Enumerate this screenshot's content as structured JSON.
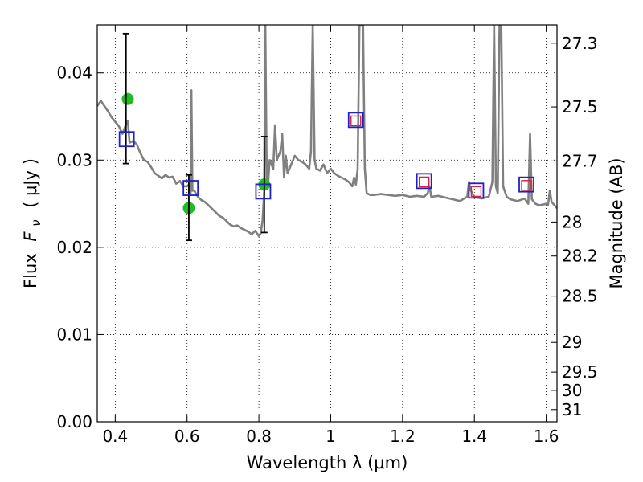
{
  "chart_data": {
    "type": "scatter",
    "title": "",
    "xlabel": "Wavelength  λ (μm)",
    "ylabel_left": "Flux  F_ν  ( μJy )",
    "ylabel_left_parts": {
      "prefix": "Flux",
      "symbol_base": "F",
      "symbol_sub": "ν",
      "unit": "( μJy )"
    },
    "ylabel_right": "Magnitude (AB)",
    "xlim": [
      0.35,
      1.63
    ],
    "ylim": [
      0.0,
      0.0455
    ],
    "x_ticks": [
      0.4,
      0.6,
      0.8,
      1.0,
      1.2,
      1.4,
      1.6
    ],
    "x_tick_labels": [
      "0.4",
      "0.6",
      "0.8",
      "1",
      "1.2",
      "1.4",
      "1.6"
    ],
    "y_ticks": [
      0.0,
      0.01,
      0.02,
      0.03,
      0.04
    ],
    "y_tick_labels": [
      "0.00",
      "0.01",
      "0.02",
      "0.03",
      "0.04"
    ],
    "right_ticks": [
      {
        "flux": 0.0434,
        "label": "27.3"
      },
      {
        "flux": 0.0361,
        "label": "27.5"
      },
      {
        "flux": 0.0299,
        "label": "27.7"
      },
      {
        "flux": 0.0229,
        "label": "28"
      },
      {
        "flux": 0.019,
        "label": "28.2"
      },
      {
        "flux": 0.0144,
        "label": "28.5"
      },
      {
        "flux": 0.0091,
        "label": "29"
      },
      {
        "flux": 0.0057,
        "label": "29.5"
      },
      {
        "flux": 0.0036,
        "label": "30"
      },
      {
        "flux": 0.0014,
        "label": "31"
      }
    ],
    "grid": true,
    "colors": {
      "model_line": "#808080",
      "green_points": "#22bb22",
      "blue_squares": "#1f1fcc",
      "red_squares": "#dd1f3f",
      "error_bars": "#000000"
    },
    "series": [
      {
        "kind": "model_spectrum",
        "x": [
          0.35,
          0.36,
          0.37,
          0.38,
          0.39,
          0.4,
          0.41,
          0.42,
          0.43,
          0.435,
          0.44,
          0.45,
          0.46,
          0.47,
          0.48,
          0.49,
          0.5,
          0.51,
          0.52,
          0.53,
          0.54,
          0.55,
          0.56,
          0.57,
          0.58,
          0.59,
          0.6,
          0.605,
          0.61,
          0.612,
          0.615,
          0.62,
          0.63,
          0.64,
          0.65,
          0.66,
          0.67,
          0.68,
          0.69,
          0.7,
          0.71,
          0.72,
          0.73,
          0.74,
          0.75,
          0.76,
          0.77,
          0.78,
          0.79,
          0.8,
          0.805,
          0.81,
          0.815,
          0.818,
          0.822,
          0.826,
          0.83,
          0.84,
          0.845,
          0.85,
          0.86,
          0.865,
          0.87,
          0.875,
          0.88,
          0.89,
          0.9,
          0.91,
          0.92,
          0.93,
          0.94,
          0.945,
          0.95,
          0.955,
          0.96,
          0.97,
          0.98,
          0.99,
          1.0,
          1.01,
          1.02,
          1.03,
          1.04,
          1.05,
          1.06,
          1.065,
          1.07,
          1.075,
          1.08,
          1.085,
          1.09,
          1.095,
          1.1,
          1.11,
          1.12,
          1.14,
          1.16,
          1.18,
          1.2,
          1.22,
          1.24,
          1.26,
          1.27,
          1.275,
          1.28,
          1.3,
          1.32,
          1.34,
          1.36,
          1.38,
          1.385,
          1.39,
          1.4,
          1.42,
          1.44,
          1.45,
          1.455,
          1.46,
          1.465,
          1.47,
          1.475,
          1.48,
          1.49,
          1.5,
          1.52,
          1.54,
          1.55,
          1.555,
          1.56,
          1.57,
          1.58,
          1.6,
          1.605,
          1.61,
          1.615,
          1.63
        ],
        "y": [
          0.0362,
          0.0368,
          0.0362,
          0.0356,
          0.0349,
          0.0344,
          0.0339,
          0.033,
          0.0341,
          0.0345,
          0.032,
          0.0322,
          0.0318,
          0.0308,
          0.03,
          0.0298,
          0.0292,
          0.0285,
          0.0282,
          0.0279,
          0.0283,
          0.028,
          0.0281,
          0.0273,
          0.0276,
          0.027,
          0.027,
          0.0272,
          0.0262,
          0.038,
          0.0265,
          0.0265,
          0.0258,
          0.0254,
          0.0252,
          0.0248,
          0.0244,
          0.024,
          0.0236,
          0.0234,
          0.023,
          0.0226,
          0.0224,
          0.0225,
          0.0222,
          0.022,
          0.0218,
          0.0215,
          0.0219,
          0.0213,
          0.0216,
          0.023,
          0.0265,
          0.0455,
          0.0275,
          0.0275,
          0.03,
          0.029,
          0.034,
          0.03,
          0.031,
          0.033,
          0.028,
          0.0305,
          0.0285,
          0.0295,
          0.0305,
          0.03,
          0.0298,
          0.0295,
          0.029,
          0.031,
          0.0455,
          0.03,
          0.029,
          0.0288,
          0.0295,
          0.0285,
          0.029,
          0.0285,
          0.0282,
          0.028,
          0.0278,
          0.0275,
          0.027,
          0.028,
          0.0272,
          0.029,
          0.0455,
          0.0455,
          0.0455,
          0.029,
          0.0262,
          0.026,
          0.026,
          0.0261,
          0.026,
          0.0259,
          0.026,
          0.0258,
          0.0259,
          0.0258,
          0.0262,
          0.027,
          0.0258,
          0.0259,
          0.0257,
          0.0255,
          0.0253,
          0.0258,
          0.0275,
          0.0265,
          0.0258,
          0.0256,
          0.0258,
          0.0275,
          0.0455,
          0.027,
          0.0262,
          0.0455,
          0.0455,
          0.027,
          0.0258,
          0.0255,
          0.0253,
          0.0256,
          0.025,
          0.033,
          0.0255,
          0.025,
          0.0248,
          0.025,
          0.0248,
          0.0265,
          0.0252,
          0.0245
        ]
      },
      {
        "kind": "green_points",
        "x": [
          0.435,
          0.605,
          0.815
        ],
        "y": [
          0.037,
          0.0245,
          0.0272
        ]
      },
      {
        "kind": "error_bars",
        "x": [
          0.43,
          0.605,
          0.815
        ],
        "y_low": [
          0.0296,
          0.0208,
          0.0217
        ],
        "y_high": [
          0.0445,
          0.0283,
          0.0327
        ]
      },
      {
        "kind": "blue_squares",
        "x": [
          0.432,
          0.61,
          0.812,
          1.07,
          1.26,
          1.405,
          1.545
        ],
        "y": [
          0.0324,
          0.0268,
          0.0264,
          0.0346,
          0.0276,
          0.0265,
          0.0272
        ]
      },
      {
        "kind": "red_squares",
        "x": [
          1.07,
          1.26,
          1.405,
          1.545
        ],
        "y": [
          0.0345,
          0.0275,
          0.0264,
          0.0271
        ]
      }
    ]
  }
}
